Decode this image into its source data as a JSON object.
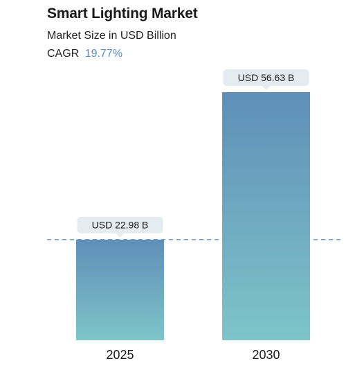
{
  "header": {
    "title": "Smart Lighting Market",
    "subtitle": "Market Size in USD Billion",
    "cagr_label": "CAGR",
    "cagr_value": "19.77%"
  },
  "colors": {
    "bar_top": "#5f8fb8",
    "bar_bottom": "#7ec4c9",
    "label_bg": "#e4ecef",
    "reference_line": "#5b8fbf"
  },
  "chart_data": {
    "type": "bar",
    "title": "Smart Lighting Market",
    "subtitle": "Market Size in USD Billion",
    "categories": [
      "2025",
      "2030"
    ],
    "values": [
      22.98,
      56.63
    ],
    "data_labels": [
      "USD 22.98 B",
      "USD 56.63 B"
    ],
    "unit": "USD Billion",
    "ylim": [
      0,
      56.63
    ],
    "reference_line_value": 22.98,
    "grid": false,
    "legend": "none"
  }
}
